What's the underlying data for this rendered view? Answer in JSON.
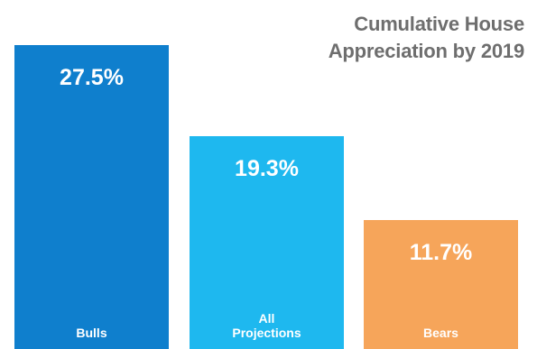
{
  "chart_data": {
    "type": "bar",
    "title_lines": [
      "Cumulative House",
      "Appreciation by 2019"
    ],
    "categories": [
      "Bulls",
      "All\nProjections",
      "Bears"
    ],
    "values": [
      27.5,
      19.3,
      11.7
    ],
    "value_labels": [
      "27.5%",
      "19.3%",
      "11.7%"
    ],
    "colors": [
      "#0f7fcd",
      "#1eb8ef",
      "#f6a55a"
    ],
    "ylim": [
      0,
      30
    ],
    "grid": false,
    "legend": "none"
  }
}
